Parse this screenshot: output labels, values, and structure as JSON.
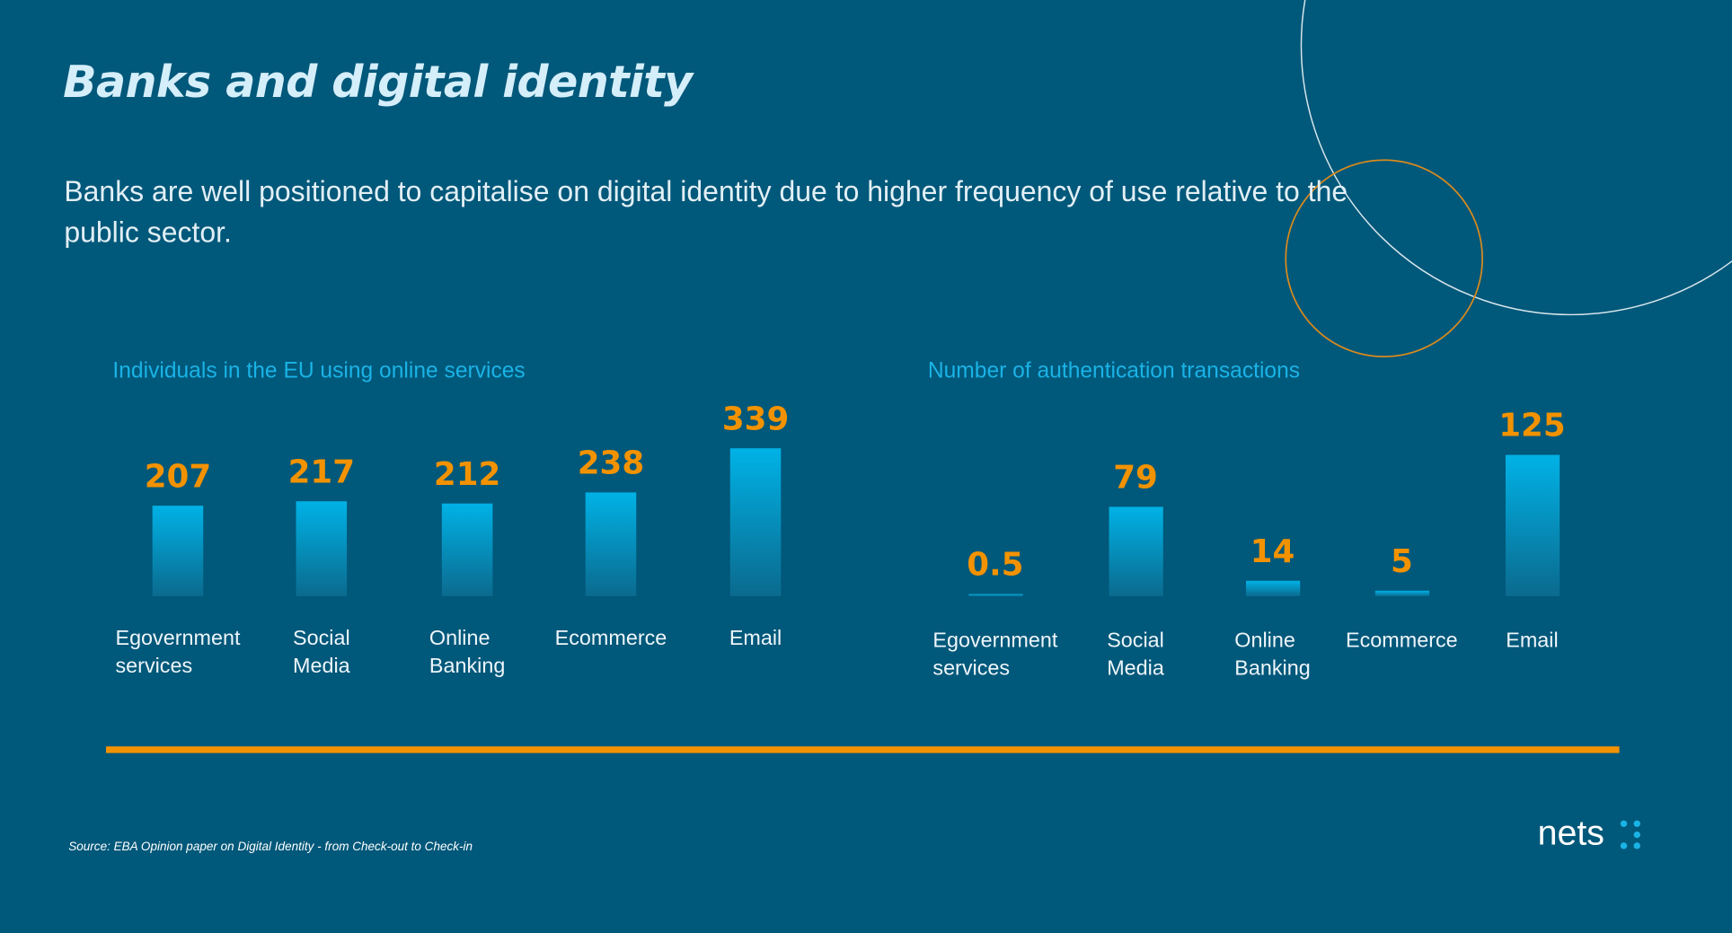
{
  "header": {
    "title": "Banks and digital identity",
    "subtitle": "Banks are well positioned to capitalise on digital identity due to higher frequency of use relative to the public sector."
  },
  "chart_data": [
    {
      "type": "bar",
      "title": "Individuals in the EU using online services",
      "categories": [
        "Egovernment services",
        "Social Media",
        "Online Banking",
        "Ecommerce",
        "Email"
      ],
      "values": [
        207,
        217,
        212,
        238,
        339
      ],
      "color": "#00b2e6",
      "label_color": "#f39200"
    },
    {
      "type": "bar",
      "title": "Number of authentication transactions",
      "categories": [
        "Egovernment services",
        "Social Media",
        "Online Banking",
        "Ecommerce",
        "Email"
      ],
      "values": [
        0.5,
        79,
        14,
        5,
        125
      ],
      "color": "#00b2e6",
      "label_color": "#f39200"
    }
  ],
  "footer": {
    "source": "Source: EBA Opinion paper on Digital Identity - from Check-out to Check-in",
    "logo": "nets"
  }
}
